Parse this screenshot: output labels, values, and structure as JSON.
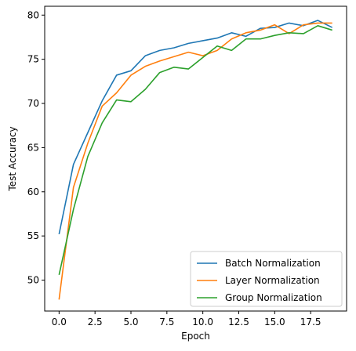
{
  "chart_data": {
    "type": "line",
    "title": "",
    "xlabel": "Epoch",
    "ylabel": "Test Accuracy",
    "xlim": [
      -1,
      20
    ],
    "ylim": [
      46.5,
      81
    ],
    "xticks": [
      0,
      2.5,
      5,
      7.5,
      10,
      12.5,
      15,
      17.5
    ],
    "xtick_labels": [
      "0.0",
      "2.5",
      "5.0",
      "7.5",
      "10.0",
      "12.5",
      "15.0",
      "17.5"
    ],
    "yticks": [
      50,
      55,
      60,
      65,
      70,
      75,
      80
    ],
    "ytick_labels": [
      "50",
      "55",
      "60",
      "65",
      "70",
      "75",
      "80"
    ],
    "grid": false,
    "legend_position": "lower-right",
    "x": [
      0,
      1,
      2,
      3,
      4,
      5,
      6,
      7,
      8,
      9,
      10,
      11,
      12,
      13,
      14,
      15,
      16,
      17,
      18,
      19
    ],
    "series": [
      {
        "name": "Batch Normalization",
        "color": "#1f77b4",
        "values": [
          55.2,
          63.1,
          66.7,
          70.3,
          73.2,
          73.7,
          75.4,
          76.0,
          76.3,
          76.8,
          77.1,
          77.4,
          78.0,
          77.6,
          78.5,
          78.6,
          79.1,
          78.8,
          79.4,
          78.6
        ]
      },
      {
        "name": "Layer Normalization",
        "color": "#ff7f0e",
        "values": [
          47.8,
          60.5,
          65.5,
          69.7,
          71.2,
          73.2,
          74.2,
          74.8,
          75.3,
          75.8,
          75.4,
          76.0,
          77.3,
          78.0,
          78.3,
          78.9,
          77.9,
          78.9,
          79.1,
          79.1
        ]
      },
      {
        "name": "Group Normalization",
        "color": "#2ca02c",
        "values": [
          50.6,
          58.0,
          64.0,
          67.8,
          70.4,
          70.2,
          71.6,
          73.5,
          74.1,
          73.9,
          75.2,
          76.5,
          76.0,
          77.3,
          77.3,
          77.7,
          78.0,
          77.9,
          78.8,
          78.3
        ]
      }
    ]
  }
}
